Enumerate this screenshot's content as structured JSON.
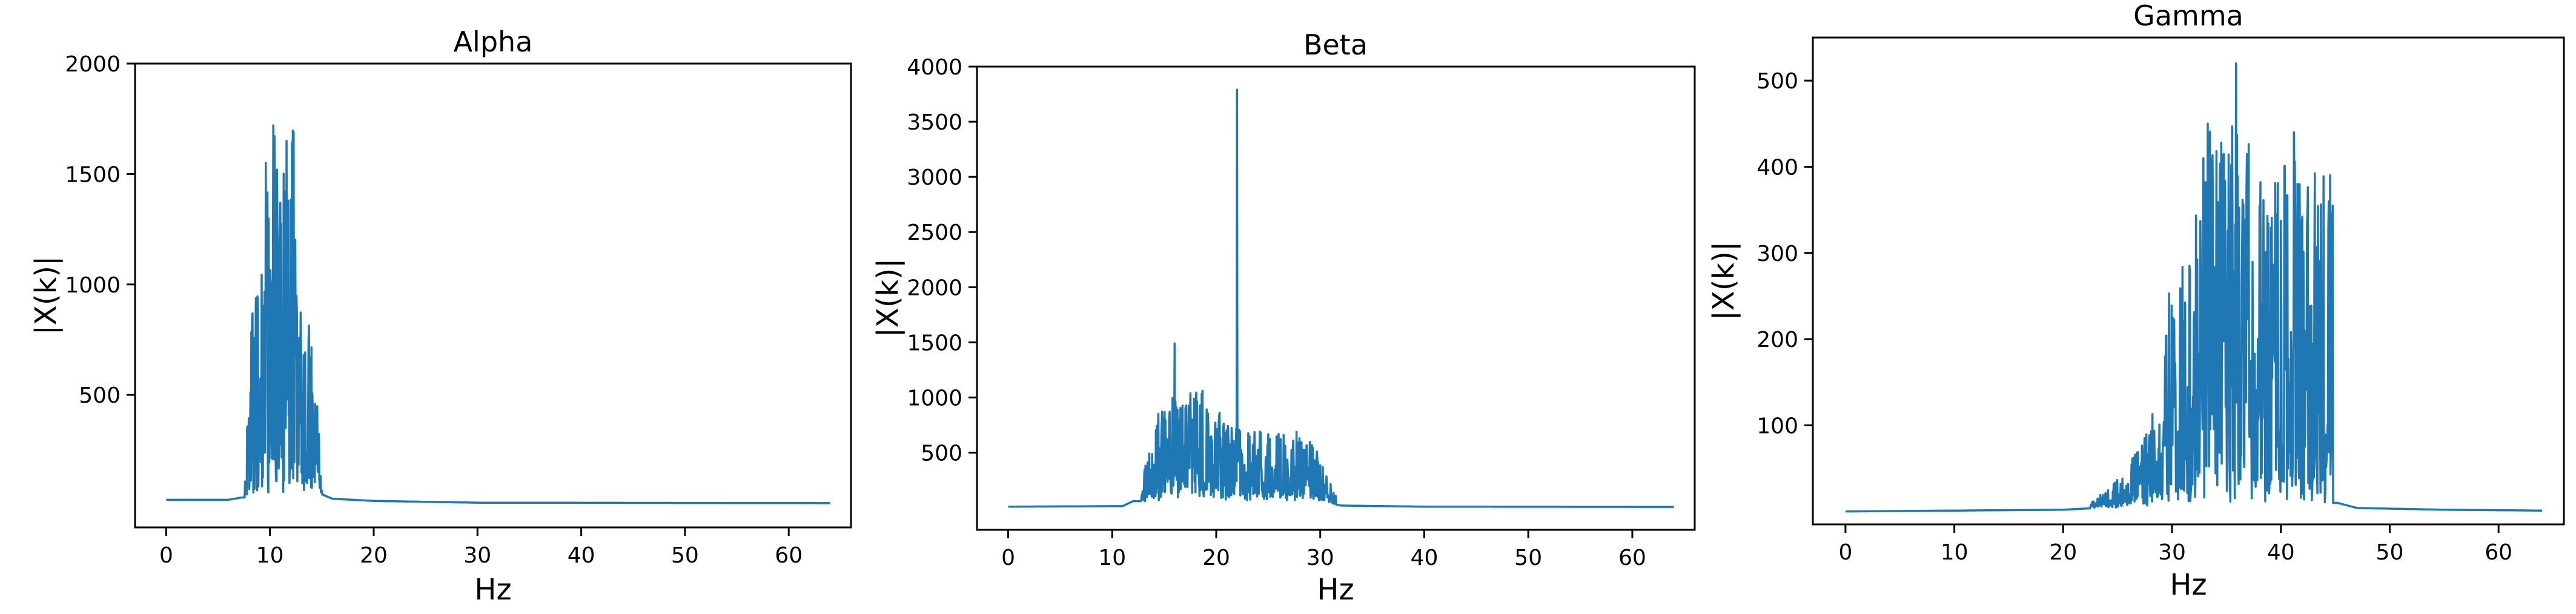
{
  "figure": {
    "line_color": "#1f77b4",
    "axes_color": "#000000",
    "background": "#ffffff"
  },
  "chart_data": [
    {
      "type": "line",
      "title": "Alpha",
      "xlabel": "Hz",
      "ylabel": "|X(k)|",
      "xlim": [
        -3,
        66
      ],
      "ylim": [
        -100,
        2000
      ],
      "xticks": [
        "0",
        "10",
        "20",
        "30",
        "40",
        "50",
        "60"
      ],
      "yticks": [
        "500",
        "1000",
        "1500",
        "2000"
      ],
      "grid": false,
      "band": [
        8,
        13
      ],
      "baseline": [
        [
          0,
          25
        ],
        [
          6,
          25
        ],
        [
          7.2,
          35
        ],
        [
          15,
          50
        ],
        [
          16,
          30
        ],
        [
          20,
          20
        ],
        [
          30,
          12
        ],
        [
          64,
          10
        ]
      ],
      "envelope": [
        [
          7.6,
          150
        ],
        [
          8,
          500
        ],
        [
          8.3,
          900
        ],
        [
          8.8,
          1000
        ],
        [
          9.3,
          1300
        ],
        [
          9.6,
          1500
        ],
        [
          10,
          1600
        ],
        [
          10.4,
          1720
        ],
        [
          10.8,
          1400
        ],
        [
          11.3,
          1500
        ],
        [
          11.8,
          1650
        ],
        [
          12.2,
          1690
        ],
        [
          12.6,
          1100
        ],
        [
          13.2,
          750
        ],
        [
          13.8,
          850
        ],
        [
          14.4,
          500
        ],
        [
          15,
          150
        ]
      ],
      "peaks": [
        [
          9.6,
          1550
        ],
        [
          10.3,
          1720
        ],
        [
          11.6,
          1650
        ],
        [
          12.3,
          1690
        ]
      ]
    },
    {
      "type": "line",
      "title": "Beta",
      "xlabel": "Hz",
      "ylabel": "|X(k)|",
      "xlim": [
        -3,
        66
      ],
      "ylim": [
        -200,
        4000
      ],
      "xticks": [
        "0",
        "10",
        "20",
        "30",
        "40",
        "50",
        "60"
      ],
      "yticks": [
        "500",
        "1000",
        "1500",
        "2000",
        "2500",
        "3000",
        "3500",
        "4000"
      ],
      "grid": false,
      "band": [
        13,
        30
      ],
      "baseline": [
        [
          0,
          10
        ],
        [
          11,
          15
        ],
        [
          12,
          60
        ],
        [
          30,
          60
        ],
        [
          32,
          20
        ],
        [
          40,
          10
        ],
        [
          64,
          8
        ]
      ],
      "envelope": [
        [
          12.8,
          150
        ],
        [
          13.5,
          500
        ],
        [
          14.2,
          800
        ],
        [
          15,
          850
        ],
        [
          16,
          1000
        ],
        [
          17,
          950
        ],
        [
          18,
          1050
        ],
        [
          19,
          1000
        ],
        [
          20,
          900
        ],
        [
          21,
          700
        ],
        [
          22.5,
          650
        ],
        [
          23.5,
          700
        ],
        [
          25,
          650
        ],
        [
          26.5,
          600
        ],
        [
          27.5,
          650
        ],
        [
          28.5,
          620
        ],
        [
          29.5,
          550
        ],
        [
          30.5,
          300
        ],
        [
          31.5,
          80
        ]
      ],
      "peaks": [
        [
          16,
          1490
        ],
        [
          22,
          3790
        ]
      ]
    },
    {
      "type": "line",
      "title": "Gamma",
      "xlabel": "Hz",
      "ylabel": "|X(k)|",
      "xlim": [
        -3,
        66
      ],
      "ylim": [
        -15,
        550
      ],
      "xticks": [
        "0",
        "10",
        "20",
        "30",
        "40",
        "50",
        "60"
      ],
      "yticks": [
        "100",
        "200",
        "300",
        "400",
        "500"
      ],
      "grid": false,
      "band": [
        30,
        45
      ],
      "baseline": [
        [
          0,
          0
        ],
        [
          20,
          2
        ],
        [
          23,
          4
        ],
        [
          45.2,
          10
        ],
        [
          47,
          4
        ],
        [
          55,
          2
        ],
        [
          64,
          1
        ]
      ],
      "envelope": [
        [
          22.5,
          10
        ],
        [
          24,
          20
        ],
        [
          25.5,
          40
        ],
        [
          27,
          70
        ],
        [
          28.5,
          120
        ],
        [
          29.3,
          200
        ],
        [
          30,
          280
        ],
        [
          31,
          300
        ],
        [
          32,
          350
        ],
        [
          33,
          450
        ],
        [
          34,
          420
        ],
        [
          35,
          460
        ],
        [
          36,
          440
        ],
        [
          37,
          420
        ],
        [
          38,
          400
        ],
        [
          39,
          360
        ],
        [
          40,
          390
        ],
        [
          41,
          440
        ],
        [
          42,
          380
        ],
        [
          43,
          400
        ],
        [
          44,
          380
        ],
        [
          44.8,
          390
        ]
      ],
      "peaks": [
        [
          33.3,
          450
        ],
        [
          35.9,
          520
        ],
        [
          41.2,
          440
        ]
      ]
    }
  ]
}
